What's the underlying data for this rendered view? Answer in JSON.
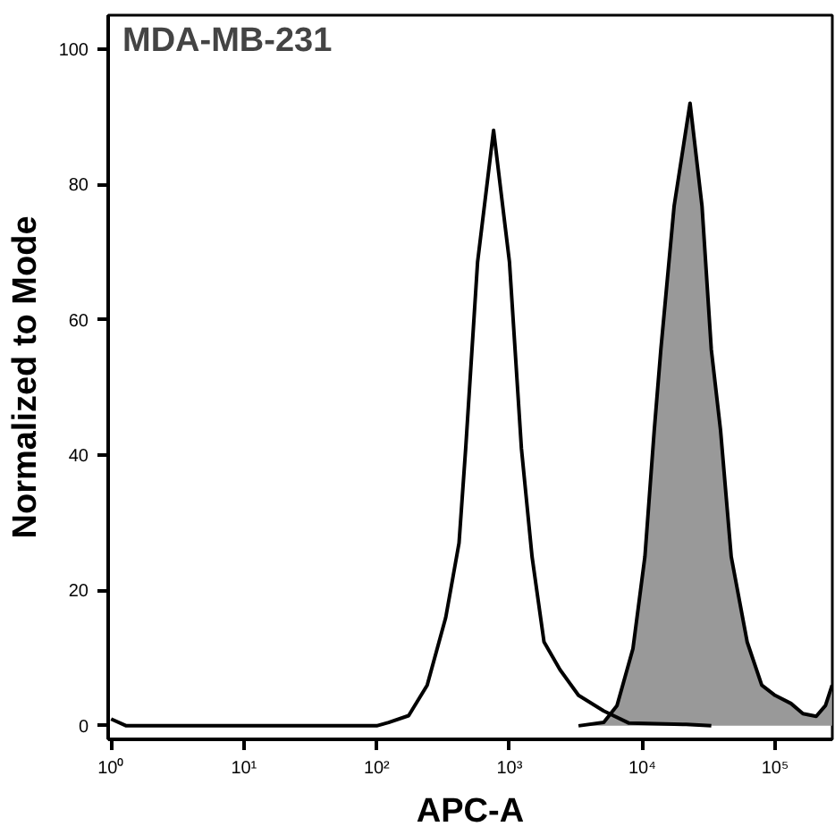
{
  "chart_data": {
    "type": "line",
    "title": "MDA-MB-231",
    "xlabel": "APC-A",
    "ylabel": "Normalized to Mode",
    "log": "x",
    "grid": false,
    "xlim": [
      0.95,
      270000
    ],
    "ylim": [
      -2,
      105
    ],
    "xticks": [
      {
        "value": 1,
        "label": "10⁰"
      },
      {
        "value": 10,
        "label": "10¹"
      },
      {
        "value": 100,
        "label": "10²"
      },
      {
        "value": 1000,
        "label": "10³"
      },
      {
        "value": 10000,
        "label": "10⁴"
      },
      {
        "value": 100000,
        "label": "10⁵"
      }
    ],
    "yticks": [
      0,
      20,
      40,
      60,
      80,
      100
    ],
    "series": [
      {
        "color": "#000000",
        "x": [
          1,
          1.3,
          81,
          100,
          123,
          174,
          240,
          331,
          417,
          468,
          575,
          759,
          1000,
          1230,
          1479,
          1820,
          2399,
          3311,
          5129,
          7943,
          21380,
          33113
        ],
        "values": [
          1,
          0,
          0,
          0,
          0.5,
          1.5,
          6,
          16,
          27,
          41,
          68.5,
          88,
          68.5,
          41,
          25,
          12.4,
          8.3,
          4.5,
          2.2,
          0.4,
          0.2,
          0
        ]
      },
      {
        "type": "area",
        "color": "#999999",
        "x": [
          3311,
          5129,
          6457,
          8511,
          10471,
          12303,
          13804,
          17378,
          22909,
          28184,
          33113,
          38905,
          46774,
          61660,
          79433,
          100000,
          131826,
          162181,
          204174,
          239883,
          269153
        ],
        "values": [
          0,
          0.5,
          3,
          11.4,
          25,
          43.6,
          55.6,
          76.8,
          92,
          76.8,
          55.6,
          43.6,
          25,
          12.4,
          6,
          4.5,
          3.3,
          1.8,
          1.4,
          3,
          6
        ]
      }
    ]
  }
}
